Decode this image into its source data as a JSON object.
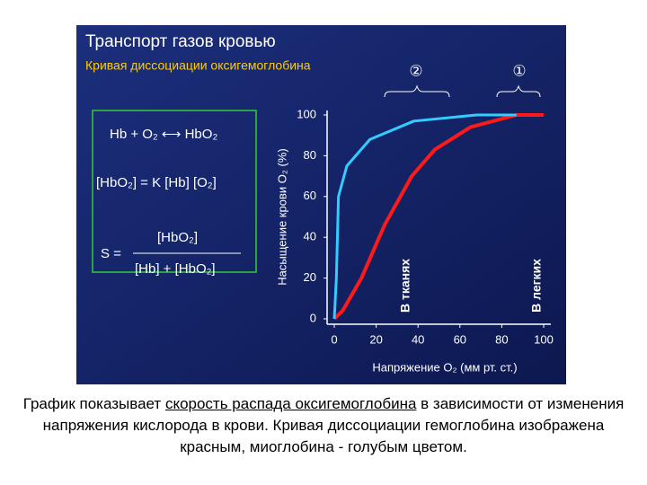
{
  "header": {
    "title": "Транспорт газов кровью",
    "subtitle": "Кривая диссоциации оксигемоглобина"
  },
  "formulas": {
    "reaction": "Hb + O₂ ⟷ HbO₂",
    "equilibrium": "[HbO₂] = K [Hb] [O₂]",
    "s_left": "S =",
    "numerator": "[HbO₂]",
    "denominator": "[Hb] + [HbO₂]"
  },
  "chart_data": {
    "type": "line",
    "ylabel": "Насыщение крови O₂ (%)",
    "xlabel": "Напряжение O₂ (мм рт. ст.)",
    "xlim": [
      0,
      100
    ],
    "xticks": [
      0,
      20,
      40,
      60,
      80,
      100
    ],
    "ylim": [
      0,
      100
    ],
    "yticks": [
      0,
      20,
      40,
      60,
      80,
      100
    ],
    "series": [
      {
        "color": "#ff1a1a",
        "x": [
          0,
          4,
          13,
          24,
          37,
          48,
          65,
          87,
          100
        ],
        "values": [
          0,
          4,
          20,
          46,
          70,
          83,
          94,
          100,
          100
        ]
      },
      {
        "color": "#33ccff",
        "x": [
          0,
          1,
          2,
          6,
          17,
          38,
          68,
          87
        ],
        "values": [
          0,
          20,
          60,
          75,
          88,
          97,
          100,
          100
        ]
      }
    ],
    "annotations": [
      "В тканях",
      "В легких",
      "②",
      "①"
    ]
  },
  "caption": {
    "before": "График показывает ",
    "underlined": "скорость распада оксигемоглобина",
    "after": " в зависимости от изменения напряжения кислорода в крови. Кривая диссоциации гемоглобина изображена красным, миоглобина - голубым цветом."
  }
}
